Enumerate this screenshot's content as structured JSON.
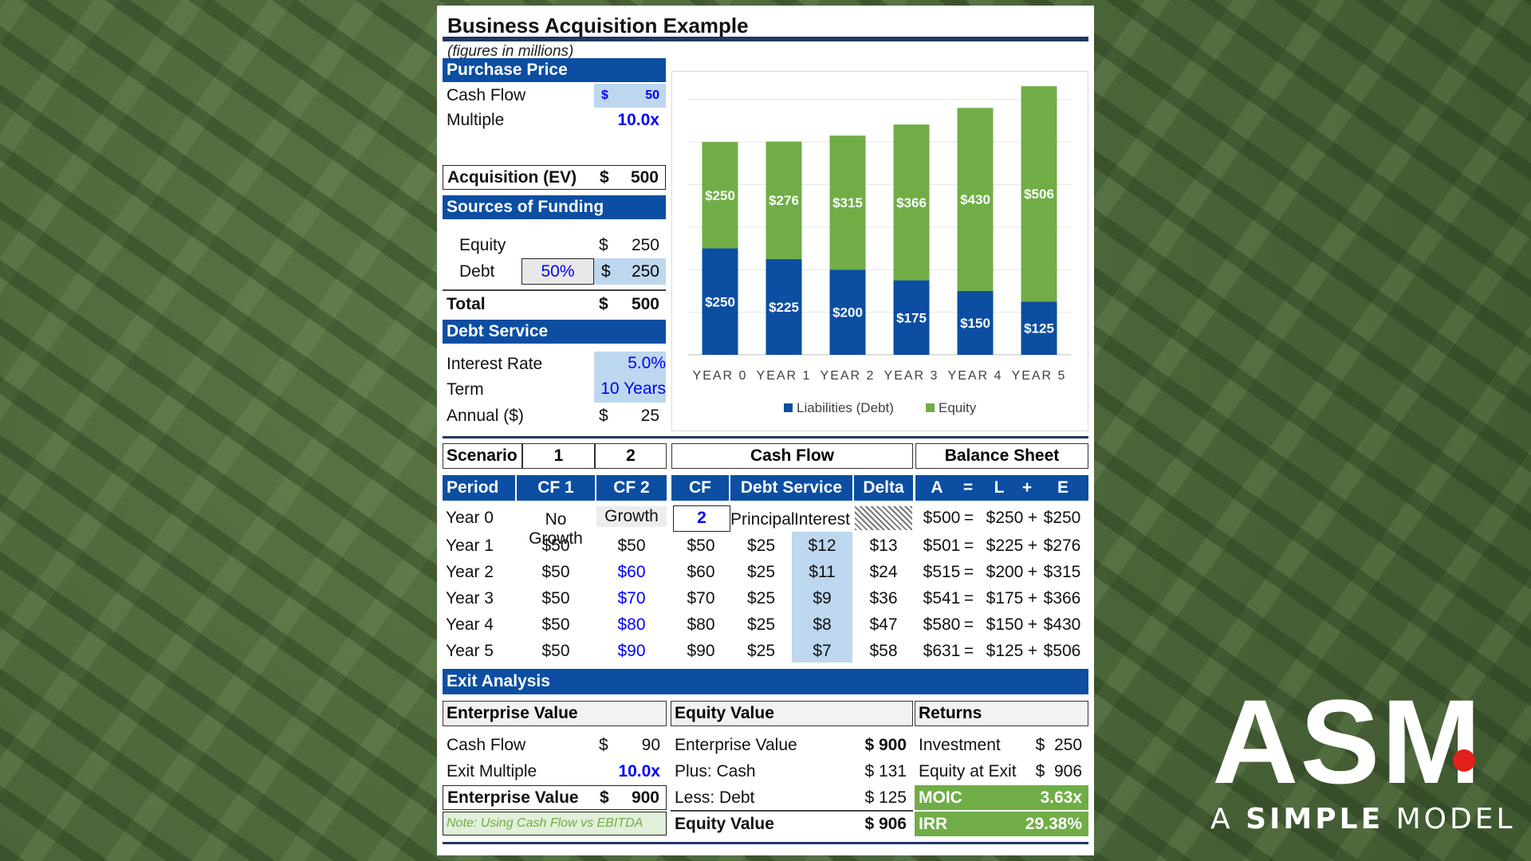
{
  "title": "Business Acquisition Example",
  "subtitle": "(figures in millions)",
  "purchase_price": {
    "header": "Purchase Price",
    "cash_flow_label": "Cash Flow",
    "cash_flow_cur": "$",
    "cash_flow_val": "50",
    "multiple_label": "Multiple",
    "multiple_val": "10.0x",
    "acq_label": "Acquisition (EV)",
    "acq_cur": "$",
    "acq_val": "500"
  },
  "funding": {
    "header": "Sources of Funding",
    "equity_label": "Equity",
    "equity_cur": "$",
    "equity_val": "250",
    "debt_label": "Debt",
    "debt_pct": "50%",
    "debt_cur": "$",
    "debt_val": "250",
    "total_label": "Total",
    "total_cur": "$",
    "total_val": "500"
  },
  "debt_service": {
    "header": "Debt Service",
    "rate_label": "Interest Rate",
    "rate_val": "5.0%",
    "term_label": "Term",
    "term_val": "10 Years",
    "annual_label": "Annual ($)",
    "annual_cur": "$",
    "annual_val": "25"
  },
  "chart_data": {
    "type": "bar",
    "stacked": true,
    "categories": [
      "YEAR 0",
      "YEAR 1",
      "YEAR 2",
      "YEAR 3",
      "YEAR 4",
      "YEAR 5"
    ],
    "series": [
      {
        "name": "Liabilities (Debt)",
        "color": "#0b4ea2",
        "values": [
          250,
          225,
          200,
          175,
          150,
          125
        ],
        "labels": [
          "$250",
          "$225",
          "$200",
          "$175",
          "$150",
          "$125"
        ]
      },
      {
        "name": "Equity",
        "color": "#70ad47",
        "values": [
          250,
          276,
          315,
          366,
          430,
          506
        ],
        "labels": [
          "$250",
          "$276",
          "$315",
          "$366",
          "$430",
          "$506"
        ]
      }
    ],
    "ylim": [
      0,
      650
    ],
    "grid": true,
    "legend": "bottom"
  },
  "table": {
    "scenario_label": "Scenario",
    "scenario_1": "1",
    "scenario_2": "2",
    "cash_flow_group": "Cash Flow",
    "balance_group": "Balance Sheet",
    "headers": {
      "period": "Period",
      "cf1": "CF 1",
      "cf2": "CF 2",
      "cf": "CF",
      "debt_service": "Debt Service",
      "delta": "Delta",
      "a": "A",
      "eq": "=",
      "l": "L",
      "plus": "+",
      "e": "E"
    },
    "year0": {
      "label": "Year 0",
      "cf1": "No Growth",
      "cf2": "Growth",
      "cf": "2",
      "principal": "Principal",
      "interest": "Interest",
      "a": "$500",
      "eq": "=",
      "l": "$250",
      "plus": "+",
      "e": "$250"
    },
    "rows": [
      {
        "label": "Year 1",
        "cf1": "$50",
        "cf2": "$50",
        "cf": "$50",
        "principal": "$25",
        "interest": "$12",
        "delta": "$13",
        "a": "$501",
        "eq": "=",
        "l": "$225",
        "plus": "+",
        "e": "$276"
      },
      {
        "label": "Year 2",
        "cf1": "$50",
        "cf2": "$60",
        "cf": "$60",
        "principal": "$25",
        "interest": "$11",
        "delta": "$24",
        "a": "$515",
        "eq": "=",
        "l": "$200",
        "plus": "+",
        "e": "$315"
      },
      {
        "label": "Year 3",
        "cf1": "$50",
        "cf2": "$70",
        "cf": "$70",
        "principal": "$25",
        "interest": "$9",
        "delta": "$36",
        "a": "$541",
        "eq": "=",
        "l": "$175",
        "plus": "+",
        "e": "$366"
      },
      {
        "label": "Year 4",
        "cf1": "$50",
        "cf2": "$80",
        "cf": "$80",
        "principal": "$25",
        "interest": "$8",
        "delta": "$47",
        "a": "$580",
        "eq": "=",
        "l": "$150",
        "plus": "+",
        "e": "$430"
      },
      {
        "label": "Year 5",
        "cf1": "$50",
        "cf2": "$90",
        "cf": "$90",
        "principal": "$25",
        "interest": "$7",
        "delta": "$58",
        "a": "$631",
        "eq": "=",
        "l": "$125",
        "plus": "+",
        "e": "$506"
      }
    ]
  },
  "exit": {
    "header": "Exit Analysis",
    "ev": {
      "header": "Enterprise Value",
      "cf_label": "Cash Flow",
      "cf_cur": "$",
      "cf_val": "90",
      "mult_label": "Exit Multiple",
      "mult_val": "10.0x",
      "ev_label": "Enterprise Value",
      "ev_cur": "$",
      "ev_val": "900",
      "note": "Note: Using Cash Flow vs EBITDA"
    },
    "equity": {
      "header": "Equity Value",
      "ev_label": "Enterprise Value",
      "ev_val": "$ 900",
      "cash_label": "Plus: Cash",
      "cash_val": "$ 131",
      "debt_label": "Less: Debt",
      "debt_val": "$ 125",
      "eqv_label": "Equity Value",
      "eqv_val": "$ 906"
    },
    "returns": {
      "header": "Returns",
      "inv_label": "Investment",
      "inv_val": "$  250",
      "exit_label": "Equity at Exit",
      "exit_val": "$  906",
      "moic_label": "MOIC",
      "moic_val": "3.63x",
      "irr_label": "IRR",
      "irr_val": "29.38%"
    }
  },
  "logo": {
    "mark": "ASM",
    "tagline_a": "A",
    "tagline_b": "SIMPLE",
    "tagline_c": "MODEL"
  },
  "colors": {
    "navy": "#0b4ea2",
    "green": "#70ad47",
    "input": "#bdd7ee",
    "background": "#4f6a3c"
  }
}
